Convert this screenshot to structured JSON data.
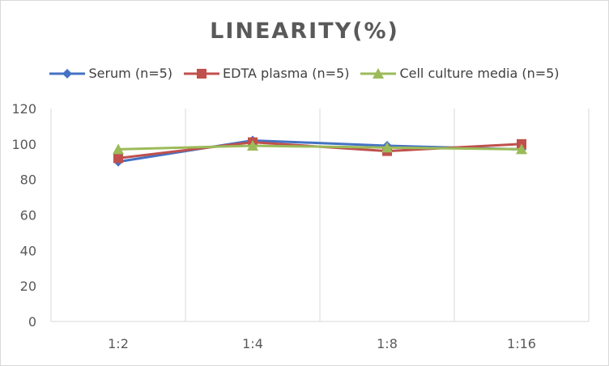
{
  "chart_data": {
    "type": "line",
    "title": "LINEARITY(%)",
    "categories": [
      "1:2",
      "1:4",
      "1:8",
      "1:16"
    ],
    "ylim": [
      0,
      120
    ],
    "yticks": [
      0,
      20,
      40,
      60,
      80,
      100,
      120
    ],
    "grid": "vertical",
    "legend": "top",
    "series": [
      {
        "name": "Serum (n=5)",
        "color": "#4472c4",
        "marker": "diamond",
        "values": [
          90,
          102,
          99,
          97
        ]
      },
      {
        "name": "EDTA plasma (n=5)",
        "color": "#c0504d",
        "marker": "square",
        "values": [
          92,
          101,
          96,
          100
        ]
      },
      {
        "name": "Cell culture media (n=5)",
        "color": "#9bbb59",
        "marker": "triangle",
        "values": [
          97,
          99,
          98,
          97
        ]
      }
    ]
  }
}
